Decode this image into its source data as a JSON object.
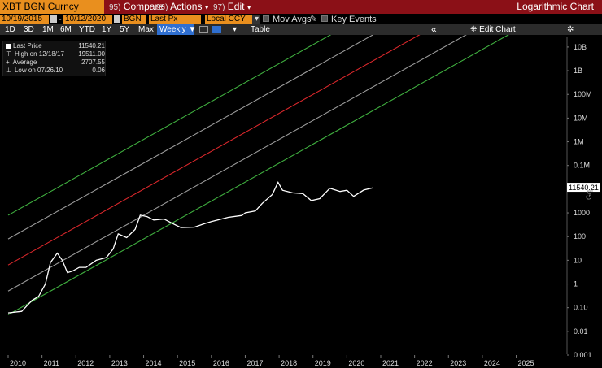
{
  "topbar": {
    "ticker": "XBT BGN Curncy",
    "compare": {
      "num": "95)",
      "label": "Compare"
    },
    "actions": {
      "num": "96)",
      "label": "Actions"
    },
    "edit": {
      "num": "97)",
      "label": "Edit"
    },
    "title": "Logarithmic Chart"
  },
  "settings": {
    "start_date": "10/19/2015",
    "end_date": "10/12/2020",
    "source": "BGN",
    "field": "Last Px",
    "currency": "Local CCY",
    "mov_avgs": "Mov Avgs",
    "key_events": "Key Events"
  },
  "toolbar": {
    "ranges": [
      "1D",
      "3D",
      "1M",
      "6M",
      "YTD",
      "1Y",
      "5Y",
      "Max"
    ],
    "frequency": "Weekly",
    "table": "Table",
    "edit_chart": "Edit Chart",
    "collapse_glyph": "«",
    "gear_glyph": "✲"
  },
  "legend": {
    "rows": [
      {
        "label": "Last Price",
        "value": "11540.21"
      },
      {
        "label": "High on 12/18/17",
        "value": "19511.00"
      },
      {
        "label": "Average",
        "value": "2707.55"
      },
      {
        "label": "Low on 07/26/10",
        "value": "0.06"
      }
    ]
  },
  "last_price_tag": "11540.21",
  "colors": {
    "topbar": "#8b1017",
    "orange": "#e98f1e",
    "price": "#ffffff",
    "band_outer": "#3fae3f",
    "band_inner": "#9a9a9a",
    "regression": "#d8272b"
  },
  "chart_data": {
    "type": "line",
    "yscale": "log",
    "yticks": [
      "10B",
      "1B",
      "100M",
      "10M",
      "1M",
      "0.1M",
      "10000",
      "1000",
      "100",
      "10",
      "1",
      "0.10",
      "0.01",
      "0.001"
    ],
    "ytick_values": [
      10000000000,
      1000000000,
      100000000,
      10000000,
      1000000,
      100000,
      10000,
      1000,
      100,
      10,
      1,
      0.1,
      0.01,
      0.001
    ],
    "xticks": [
      "2010",
      "2011",
      "2012",
      "2013",
      "2014",
      "2015",
      "2016",
      "2017",
      "2018",
      "2019",
      "2020",
      "2021",
      "2022",
      "2023",
      "2024",
      "2025"
    ],
    "xlim": [
      2010.0,
      2026.5
    ],
    "ylim": [
      0.001,
      30000000000
    ],
    "series": [
      {
        "role": "price",
        "points": [
          [
            2010.0,
            0.06
          ],
          [
            2010.4,
            0.07
          ],
          [
            2010.7,
            0.2
          ],
          [
            2010.9,
            0.3
          ],
          [
            2011.1,
            1
          ],
          [
            2011.25,
            8
          ],
          [
            2011.45,
            20
          ],
          [
            2011.6,
            10
          ],
          [
            2011.75,
            3
          ],
          [
            2011.9,
            3.5
          ],
          [
            2012.1,
            5
          ],
          [
            2012.3,
            5
          ],
          [
            2012.6,
            10
          ],
          [
            2012.9,
            13
          ],
          [
            2013.1,
            30
          ],
          [
            2013.25,
            130
          ],
          [
            2013.5,
            90
          ],
          [
            2013.75,
            200
          ],
          [
            2013.9,
            800
          ],
          [
            2014.1,
            700
          ],
          [
            2014.3,
            500
          ],
          [
            2014.6,
            550
          ],
          [
            2014.9,
            330
          ],
          [
            2015.1,
            240
          ],
          [
            2015.5,
            250
          ],
          [
            2015.8,
            350
          ],
          [
            2016.0,
            430
          ],
          [
            2016.5,
            650
          ],
          [
            2016.9,
            780
          ],
          [
            2017.0,
            1000
          ],
          [
            2017.3,
            1200
          ],
          [
            2017.5,
            2500
          ],
          [
            2017.8,
            6000
          ],
          [
            2017.97,
            19511
          ],
          [
            2018.1,
            9000
          ],
          [
            2018.4,
            7000
          ],
          [
            2018.7,
            6500
          ],
          [
            2018.95,
            3300
          ],
          [
            2019.2,
            4000
          ],
          [
            2019.5,
            11000
          ],
          [
            2019.8,
            8000
          ],
          [
            2020.0,
            9000
          ],
          [
            2020.2,
            5000
          ],
          [
            2020.5,
            9200
          ],
          [
            2020.78,
            11540.21
          ]
        ]
      }
    ]
  }
}
